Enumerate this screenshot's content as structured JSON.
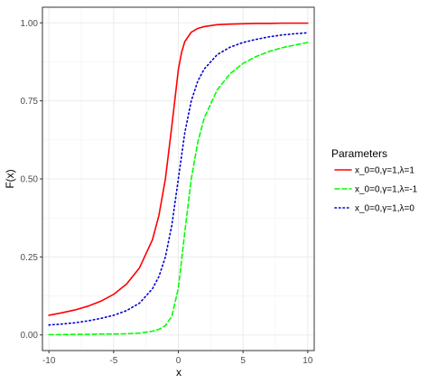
{
  "chart_data": {
    "type": "line",
    "xlabel": "x",
    "ylabel": "F(x)",
    "xlim": [
      -10.5,
      10.5
    ],
    "ylim": [
      -0.05,
      1.05
    ],
    "x_ticks": [
      -10,
      -5,
      0,
      5,
      10
    ],
    "x_tick_labels": [
      "-10",
      "-5",
      "0",
      "5",
      "10"
    ],
    "y_ticks": [
      0,
      0.25,
      0.5,
      0.75,
      1
    ],
    "y_tick_labels": [
      "0.00",
      "0.25",
      "0.50",
      "0.75",
      "1.00"
    ],
    "grid": true,
    "legend": {
      "title": "Parameters",
      "position": "right"
    },
    "series": [
      {
        "name": "x_0=0,γ=1,λ=1",
        "color": "#ff0000",
        "dash": "solid",
        "x": [
          -10,
          -9,
          -8,
          -7,
          -6,
          -5,
          -4,
          -3,
          -2,
          -1.5,
          -1,
          -0.5,
          0,
          0.25,
          0.5,
          1,
          1.5,
          2,
          3,
          4,
          5,
          6,
          7,
          8,
          9,
          10
        ],
        "y": [
          0.063,
          0.071,
          0.08,
          0.092,
          0.108,
          0.13,
          0.163,
          0.215,
          0.305,
          0.383,
          0.5,
          0.67,
          0.85,
          0.905,
          0.94,
          0.97,
          0.982,
          0.988,
          0.994,
          0.996,
          0.997,
          0.998,
          0.998,
          0.999,
          0.999,
          0.999
        ]
      },
      {
        "name": "x_0=0,γ=1,λ=-1",
        "color": "#00ff00",
        "dash": "dashed",
        "x": [
          -10,
          -9,
          -8,
          -7,
          -6,
          -5,
          -4,
          -3,
          -2,
          -1.5,
          -1,
          -0.5,
          0,
          0.5,
          1,
          1.5,
          2,
          3,
          4,
          5,
          6,
          7,
          8,
          9,
          10
        ],
        "y": [
          0.001,
          0.001,
          0.002,
          0.002,
          0.003,
          0.003,
          0.004,
          0.006,
          0.012,
          0.018,
          0.03,
          0.06,
          0.15,
          0.33,
          0.5,
          0.617,
          0.695,
          0.785,
          0.837,
          0.87,
          0.892,
          0.908,
          0.92,
          0.929,
          0.937
        ]
      },
      {
        "name": "x_0=0,γ=1,λ=0",
        "color": "#0000cc",
        "dash": "dotted",
        "x": [
          -10,
          -9,
          -8,
          -7,
          -6,
          -5,
          -4,
          -3,
          -2,
          -1.5,
          -1,
          -0.5,
          0,
          0.5,
          1,
          1.5,
          2,
          3,
          4,
          5,
          6,
          7,
          8,
          9,
          10
        ],
        "y": [
          0.032,
          0.035,
          0.039,
          0.045,
          0.053,
          0.063,
          0.078,
          0.102,
          0.148,
          0.187,
          0.25,
          0.352,
          0.5,
          0.648,
          0.75,
          0.813,
          0.852,
          0.898,
          0.922,
          0.937,
          0.947,
          0.955,
          0.961,
          0.965,
          0.968
        ]
      }
    ]
  }
}
